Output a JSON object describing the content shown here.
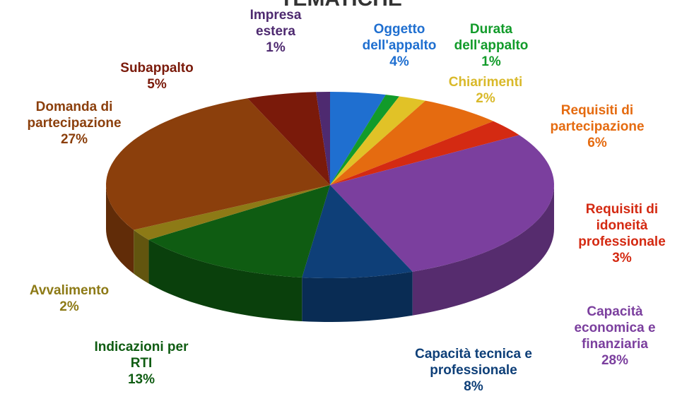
{
  "chart_data": {
    "type": "pie",
    "title": "TEMATICHE",
    "categories": [
      "Oggetto dell'appalto",
      "Durata dell'appalto",
      "Chiarimenti",
      "Requisiti di partecipazione",
      "Requisiti di idoneità professionale",
      "Capacità economica e finanziaria",
      "Capacità tecnica e professionale",
      "Indicazioni per RTI",
      "Avvalimento",
      "Domanda di partecipazione",
      "Subappalto",
      "Impresa estera"
    ],
    "values": [
      4,
      1,
      2,
      6,
      3,
      28,
      8,
      13,
      2,
      27,
      5,
      1
    ],
    "value_labels": [
      "4%",
      "1%",
      "2%",
      "6%",
      "3%",
      "28%",
      "8%",
      "13%",
      "2%",
      "27%",
      "5%",
      "1%"
    ],
    "colors": [
      "#1f6fd0",
      "#129b2a",
      "#e1c227",
      "#e56b10",
      "#d42a12",
      "#7b3f9e",
      "#0e3f78",
      "#0f5c12",
      "#8d7a16",
      "#8b3f0c",
      "#7a1a0a",
      "#4e2a70"
    ]
  }
}
